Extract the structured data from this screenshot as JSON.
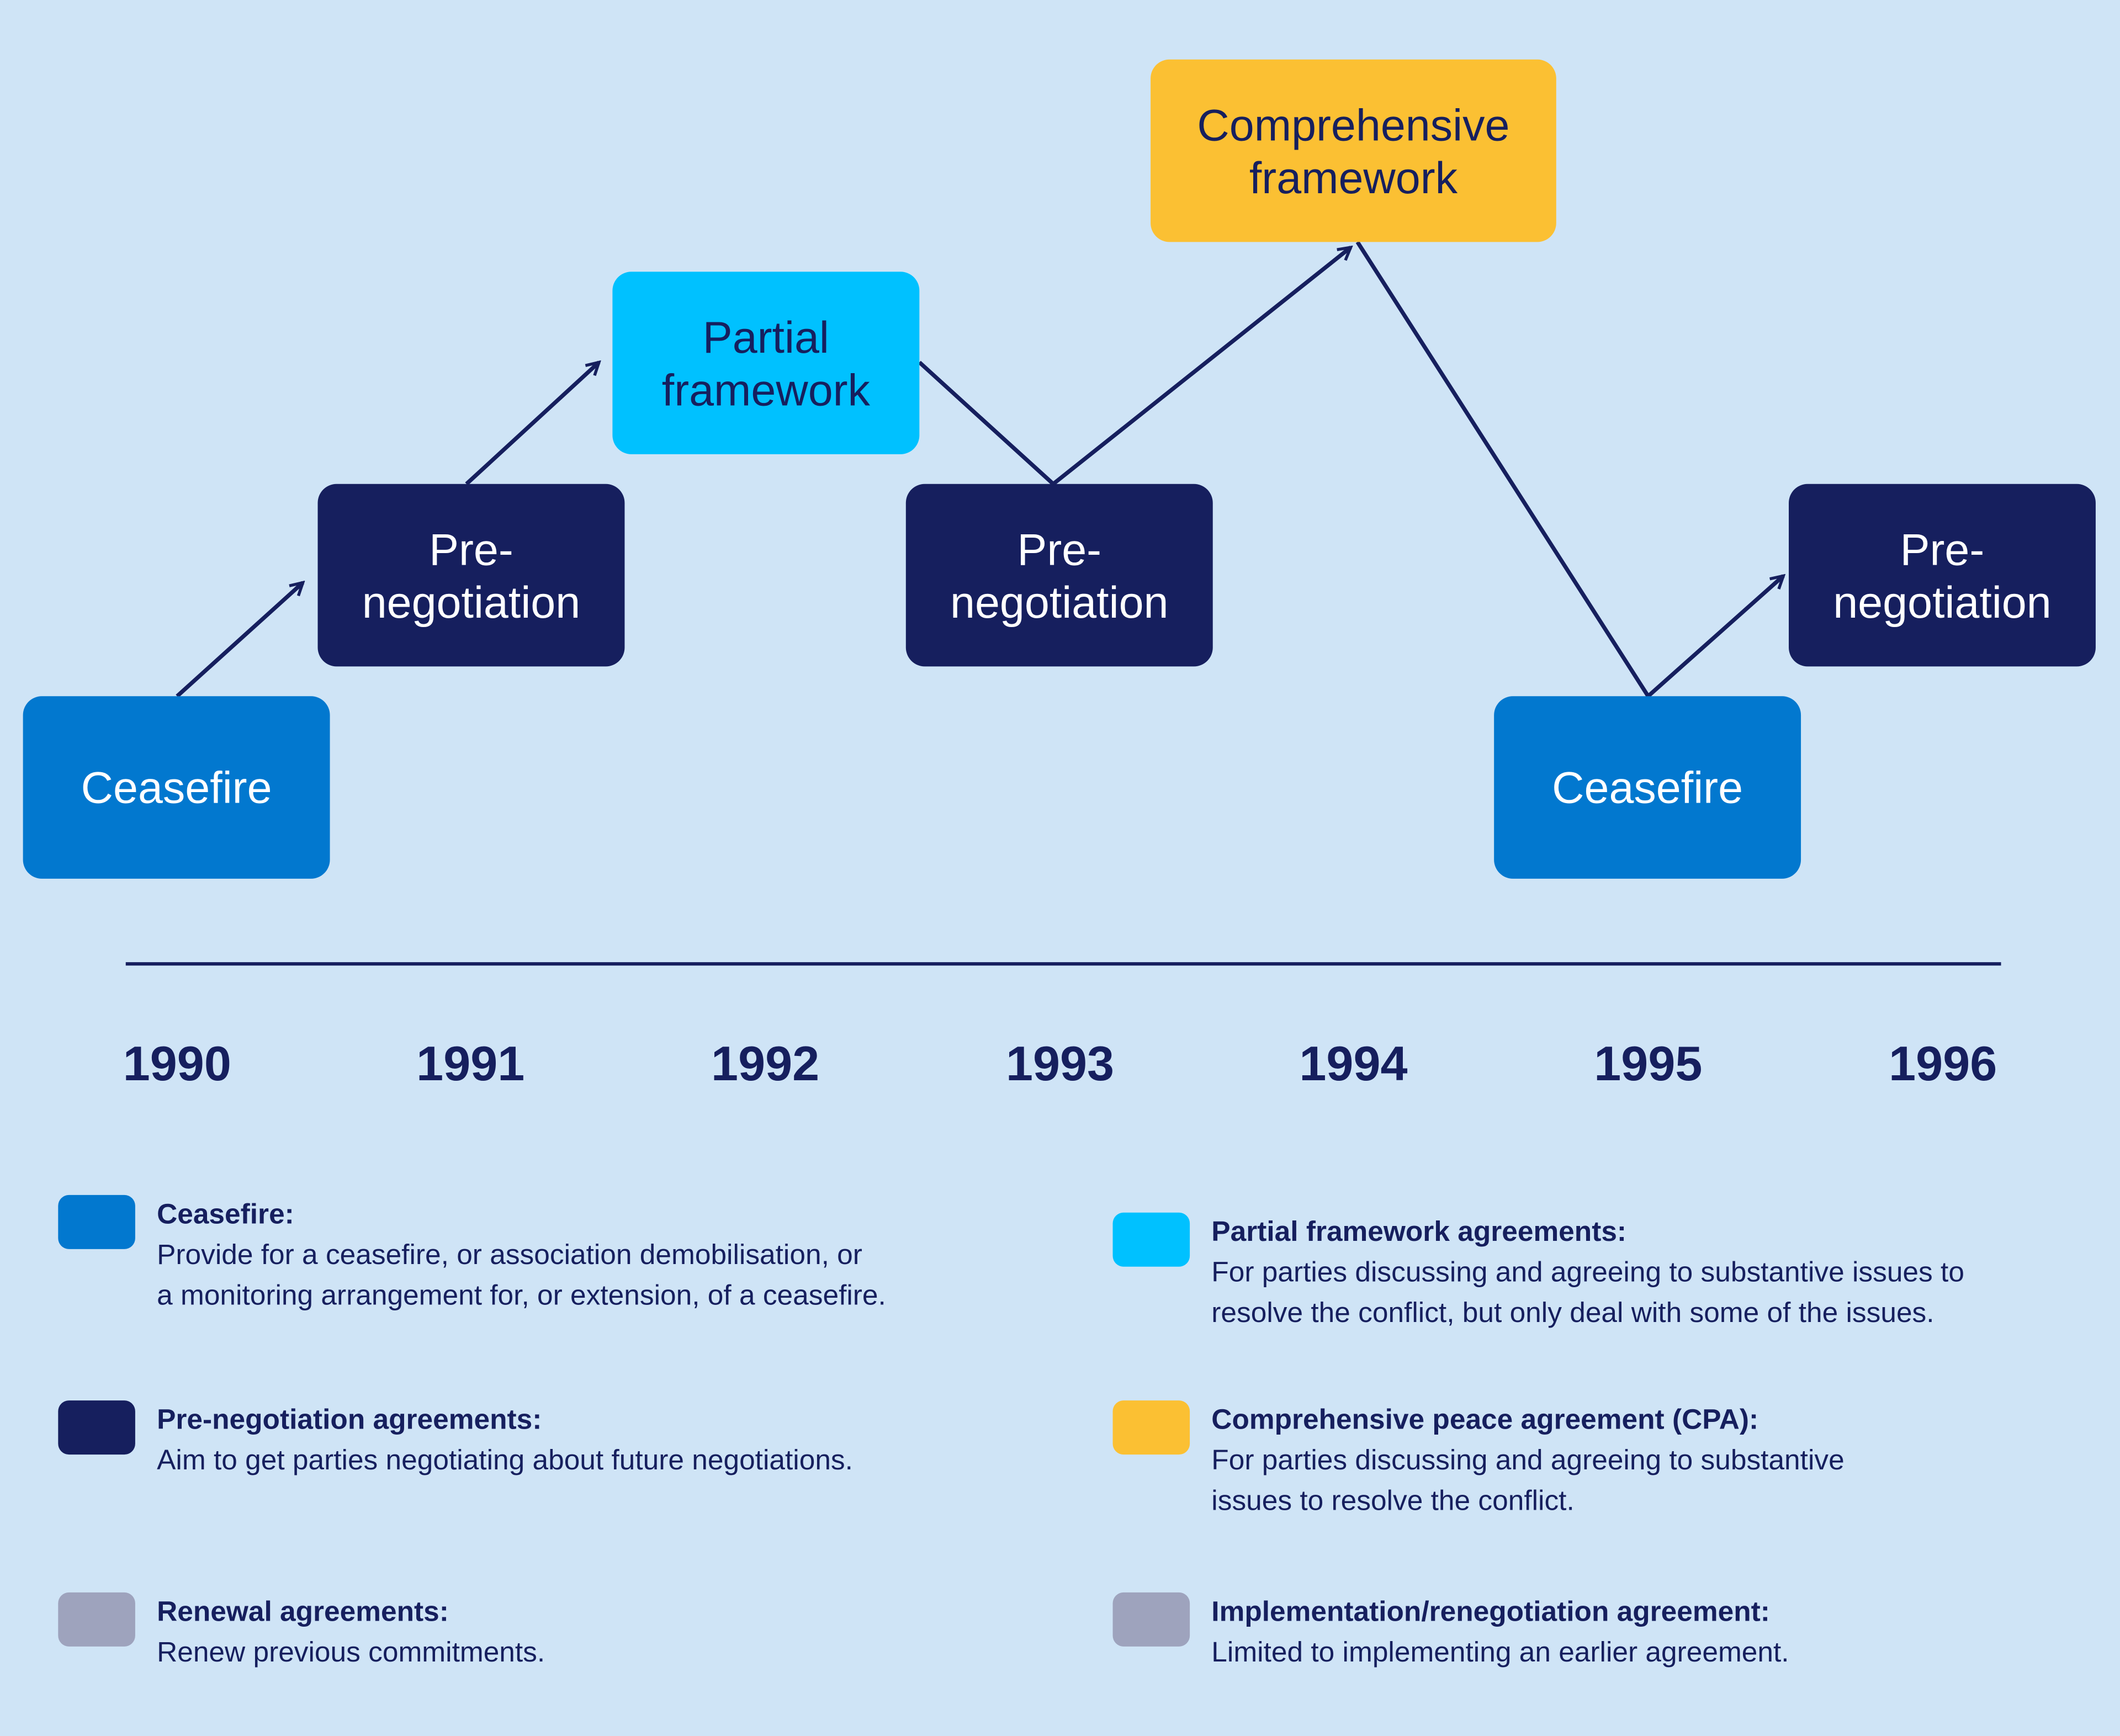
{
  "colors": {
    "ceasefire": "#0278cf",
    "pre_negotiation": "#161f5e",
    "partial": "#00c1ff",
    "comprehensive": "#fbc033",
    "renewal": "#9ea3bd",
    "background": "#cfe4f6"
  },
  "boxes": [
    {
      "label": "Ceasefire",
      "type": "ceasefire"
    },
    {
      "label": "Pre-\nnegotiation",
      "type": "pre_negotiation"
    },
    {
      "label": "Partial\nframework",
      "type": "partial"
    },
    {
      "label": "Pre-\nnegotiation",
      "type": "pre_negotiation"
    },
    {
      "label": "Comprehensive\nframework",
      "type": "comprehensive"
    },
    {
      "label": "Ceasefire",
      "type": "ceasefire"
    },
    {
      "label": "Pre-\nnegotiation",
      "type": "pre_negotiation"
    }
  ],
  "years": [
    "1990",
    "1991",
    "1992",
    "1993",
    "1994",
    "1995",
    "1996"
  ],
  "legend": [
    {
      "title": "Ceasefire:",
      "desc": "Provide for a ceasefire, or association demobilisation, or",
      "desc2": "a monitoring arrangement for, or extension, of a ceasefire."
    },
    {
      "title": "Partial framework agreements:",
      "desc": "For parties discussing and agreeing to substantive issues to",
      "desc2": "resolve the conflict, but only deal with some of the issues."
    },
    {
      "title": "Pre-negotiation agreements:",
      "desc": "Aim to get parties negotiating about future negotiations."
    },
    {
      "title": "Comprehensive peace agreement (CPA):",
      "desc": "For parties discussing and agreeing to substantive",
      "desc2": "issues to resolve the conflict."
    },
    {
      "title": "Renewal agreements:",
      "desc": "Renew previous commitments."
    },
    {
      "title": "Implementation/renegotiation agreement:",
      "desc": "Limited to implementing an earlier agreement."
    }
  ]
}
